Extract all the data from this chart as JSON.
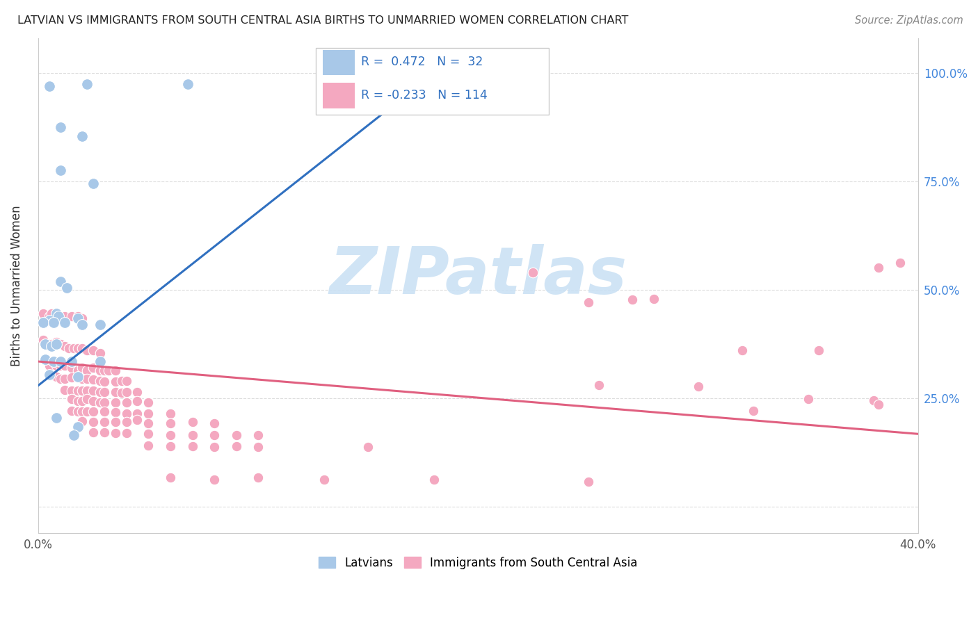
{
  "title": "LATVIAN VS IMMIGRANTS FROM SOUTH CENTRAL ASIA BIRTHS TO UNMARRIED WOMEN CORRELATION CHART",
  "source": "Source: ZipAtlas.com",
  "ylabel": "Births to Unmarried Women",
  "ytick_vals": [
    0.0,
    0.25,
    0.5,
    0.75,
    1.0
  ],
  "ytick_labels": [
    "",
    "25.0%",
    "50.0%",
    "75.0%",
    "100.0%"
  ],
  "xmin": 0.0,
  "xmax": 0.4,
  "ymin": -0.06,
  "ymax": 1.08,
  "latvian_color": "#a8c8e8",
  "immigrant_color": "#f4a8c0",
  "latvian_line_color": "#3070c0",
  "immigrant_line_color": "#e06080",
  "legend_text_color": "#3070c0",
  "watermark_color": "#c8e0f4",
  "latvian_trendline": [
    [
      0.0,
      0.28
    ],
    [
      0.185,
      1.02
    ]
  ],
  "immigrant_trendline": [
    [
      0.0,
      0.335
    ],
    [
      0.4,
      0.168
    ]
  ],
  "latvian_points": [
    [
      0.005,
      0.97
    ],
    [
      0.022,
      0.975
    ],
    [
      0.068,
      0.975
    ],
    [
      0.195,
      0.975
    ],
    [
      0.01,
      0.875
    ],
    [
      0.02,
      0.855
    ],
    [
      0.01,
      0.775
    ],
    [
      0.025,
      0.745
    ],
    [
      0.01,
      0.52
    ],
    [
      0.013,
      0.505
    ],
    [
      0.008,
      0.445
    ],
    [
      0.005,
      0.43
    ],
    [
      0.009,
      0.44
    ],
    [
      0.018,
      0.435
    ],
    [
      0.002,
      0.425
    ],
    [
      0.007,
      0.425
    ],
    [
      0.012,
      0.425
    ],
    [
      0.02,
      0.42
    ],
    [
      0.028,
      0.42
    ],
    [
      0.003,
      0.375
    ],
    [
      0.006,
      0.37
    ],
    [
      0.008,
      0.375
    ],
    [
      0.003,
      0.34
    ],
    [
      0.007,
      0.335
    ],
    [
      0.01,
      0.335
    ],
    [
      0.015,
      0.335
    ],
    [
      0.028,
      0.335
    ],
    [
      0.005,
      0.305
    ],
    [
      0.018,
      0.3
    ],
    [
      0.008,
      0.205
    ],
    [
      0.018,
      0.185
    ],
    [
      0.016,
      0.165
    ]
  ],
  "immigrant_points": [
    [
      0.002,
      0.445
    ],
    [
      0.005,
      0.44
    ],
    [
      0.006,
      0.445
    ],
    [
      0.008,
      0.445
    ],
    [
      0.01,
      0.44
    ],
    [
      0.012,
      0.44
    ],
    [
      0.015,
      0.44
    ],
    [
      0.018,
      0.44
    ],
    [
      0.02,
      0.435
    ],
    [
      0.002,
      0.385
    ],
    [
      0.005,
      0.375
    ],
    [
      0.006,
      0.375
    ],
    [
      0.008,
      0.38
    ],
    [
      0.01,
      0.375
    ],
    [
      0.012,
      0.37
    ],
    [
      0.014,
      0.365
    ],
    [
      0.016,
      0.365
    ],
    [
      0.018,
      0.365
    ],
    [
      0.02,
      0.365
    ],
    [
      0.022,
      0.36
    ],
    [
      0.025,
      0.36
    ],
    [
      0.028,
      0.355
    ],
    [
      0.005,
      0.325
    ],
    [
      0.008,
      0.325
    ],
    [
      0.01,
      0.325
    ],
    [
      0.012,
      0.325
    ],
    [
      0.015,
      0.32
    ],
    [
      0.018,
      0.315
    ],
    [
      0.02,
      0.32
    ],
    [
      0.022,
      0.315
    ],
    [
      0.025,
      0.32
    ],
    [
      0.028,
      0.315
    ],
    [
      0.03,
      0.315
    ],
    [
      0.032,
      0.315
    ],
    [
      0.035,
      0.315
    ],
    [
      0.008,
      0.3
    ],
    [
      0.01,
      0.295
    ],
    [
      0.012,
      0.295
    ],
    [
      0.015,
      0.298
    ],
    [
      0.018,
      0.298
    ],
    [
      0.02,
      0.295
    ],
    [
      0.022,
      0.295
    ],
    [
      0.025,
      0.293
    ],
    [
      0.028,
      0.29
    ],
    [
      0.03,
      0.288
    ],
    [
      0.035,
      0.288
    ],
    [
      0.038,
      0.29
    ],
    [
      0.04,
      0.29
    ],
    [
      0.012,
      0.27
    ],
    [
      0.015,
      0.268
    ],
    [
      0.018,
      0.268
    ],
    [
      0.02,
      0.268
    ],
    [
      0.022,
      0.268
    ],
    [
      0.025,
      0.268
    ],
    [
      0.028,
      0.265
    ],
    [
      0.03,
      0.265
    ],
    [
      0.035,
      0.265
    ],
    [
      0.038,
      0.263
    ],
    [
      0.04,
      0.265
    ],
    [
      0.045,
      0.265
    ],
    [
      0.015,
      0.248
    ],
    [
      0.018,
      0.243
    ],
    [
      0.02,
      0.243
    ],
    [
      0.022,
      0.248
    ],
    [
      0.025,
      0.243
    ],
    [
      0.028,
      0.24
    ],
    [
      0.03,
      0.24
    ],
    [
      0.035,
      0.24
    ],
    [
      0.04,
      0.24
    ],
    [
      0.045,
      0.243
    ],
    [
      0.05,
      0.24
    ],
    [
      0.015,
      0.222
    ],
    [
      0.018,
      0.22
    ],
    [
      0.02,
      0.22
    ],
    [
      0.022,
      0.22
    ],
    [
      0.025,
      0.22
    ],
    [
      0.03,
      0.22
    ],
    [
      0.035,
      0.218
    ],
    [
      0.04,
      0.215
    ],
    [
      0.045,
      0.215
    ],
    [
      0.05,
      0.215
    ],
    [
      0.06,
      0.215
    ],
    [
      0.02,
      0.198
    ],
    [
      0.025,
      0.196
    ],
    [
      0.03,
      0.196
    ],
    [
      0.035,
      0.196
    ],
    [
      0.04,
      0.196
    ],
    [
      0.045,
      0.2
    ],
    [
      0.05,
      0.193
    ],
    [
      0.06,
      0.193
    ],
    [
      0.07,
      0.195
    ],
    [
      0.08,
      0.192
    ],
    [
      0.025,
      0.172
    ],
    [
      0.03,
      0.172
    ],
    [
      0.035,
      0.17
    ],
    [
      0.04,
      0.17
    ],
    [
      0.05,
      0.168
    ],
    [
      0.06,
      0.165
    ],
    [
      0.07,
      0.165
    ],
    [
      0.08,
      0.165
    ],
    [
      0.09,
      0.165
    ],
    [
      0.1,
      0.165
    ],
    [
      0.05,
      0.142
    ],
    [
      0.06,
      0.14
    ],
    [
      0.07,
      0.14
    ],
    [
      0.08,
      0.138
    ],
    [
      0.09,
      0.14
    ],
    [
      0.1,
      0.138
    ],
    [
      0.15,
      0.138
    ],
    [
      0.06,
      0.068
    ],
    [
      0.08,
      0.063
    ],
    [
      0.1,
      0.068
    ],
    [
      0.13,
      0.062
    ],
    [
      0.18,
      0.062
    ],
    [
      0.25,
      0.058
    ],
    [
      0.25,
      0.472
    ],
    [
      0.27,
      0.478
    ],
    [
      0.225,
      0.54
    ],
    [
      0.28,
      0.48
    ],
    [
      0.32,
      0.36
    ],
    [
      0.355,
      0.36
    ],
    [
      0.255,
      0.28
    ],
    [
      0.3,
      0.278
    ],
    [
      0.35,
      0.248
    ],
    [
      0.38,
      0.245
    ],
    [
      0.325,
      0.222
    ],
    [
      0.382,
      0.235
    ],
    [
      0.382,
      0.552
    ],
    [
      0.392,
      0.562
    ]
  ]
}
